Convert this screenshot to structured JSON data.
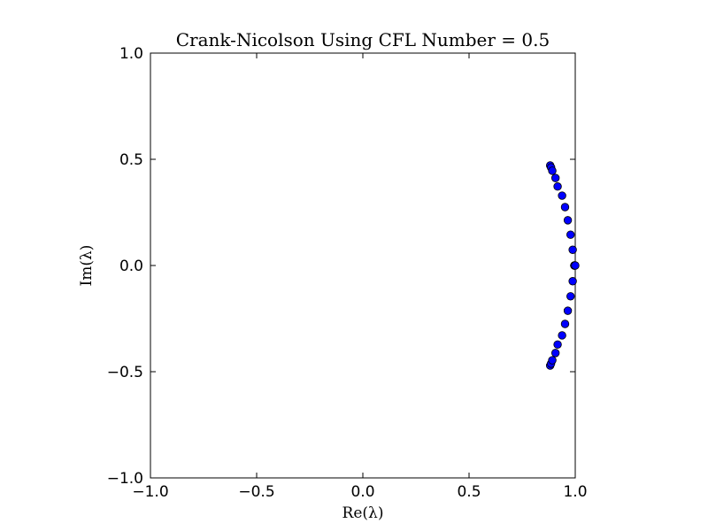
{
  "chart_data": {
    "type": "scatter",
    "title": "Crank-Nicolson Using CFL Number = 0.5",
    "xlabel": "Re(λ)",
    "ylabel": "Im(λ)",
    "xlim": [
      -1.0,
      1.0
    ],
    "ylim": [
      -1.0,
      1.0
    ],
    "xticks": [
      -1.0,
      -0.5,
      0.0,
      0.5,
      1.0
    ],
    "yticks": [
      -1.0,
      -0.5,
      0.0,
      0.5,
      1.0
    ],
    "xtick_labels": [
      "−1.0",
      "−0.5",
      "0.0",
      "0.5",
      "1.0"
    ],
    "ytick_labels": [
      "−1.0",
      "−0.5",
      "0.0",
      "0.5",
      "1.0"
    ],
    "grid": false,
    "marker_color": "#0000ff",
    "series": [
      {
        "name": "eigenvalues",
        "x": [
          0.882,
          0.886,
          0.892,
          0.907,
          0.917,
          0.938,
          0.952,
          0.965,
          0.978,
          0.988,
          0.996,
          0.882,
          0.886,
          0.892,
          0.907,
          0.917,
          0.938,
          0.952,
          0.965,
          0.978,
          0.988,
          0.996,
          1.0
        ],
        "y": [
          0.471,
          0.462,
          0.446,
          0.412,
          0.372,
          0.329,
          0.275,
          0.213,
          0.145,
          0.074,
          0.0,
          -0.471,
          -0.462,
          -0.446,
          -0.412,
          -0.372,
          -0.329,
          -0.275,
          -0.213,
          -0.145,
          -0.074,
          0.0,
          0.0
        ]
      }
    ]
  }
}
